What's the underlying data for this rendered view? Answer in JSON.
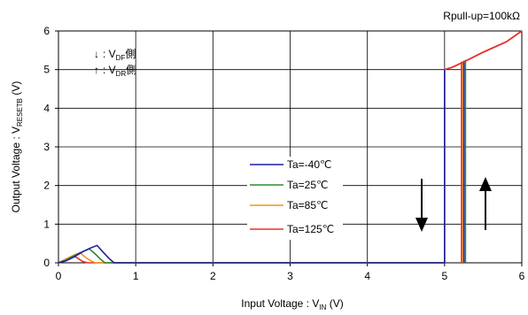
{
  "chart_data": {
    "type": "line",
    "xlabel_prefix": "Input Voltage : V",
    "xlabel_sub": "IN",
    "xlabel_suffix": " (V)",
    "ylabel_prefix": "Output Voltage : V",
    "ylabel_sub": "RESETB",
    "ylabel_suffix": " (V)",
    "xlim": [
      0,
      6
    ],
    "ylim": [
      0,
      6
    ],
    "x_ticks": [
      "0",
      "1",
      "2",
      "3",
      "4",
      "5",
      "6"
    ],
    "y_ticks": [
      "0",
      "1",
      "2",
      "3",
      "4",
      "5",
      "6"
    ],
    "grid": true,
    "condition_note": "Rpull-up=100kΩ",
    "direction_legend": [
      {
        "arrow": "↓",
        "text": ": V",
        "sub": "DF",
        "suffix": "側"
      },
      {
        "arrow": "↑",
        "text": ": V",
        "sub": "DR",
        "suffix": "側"
      }
    ],
    "legend_position": "center-right",
    "series": [
      {
        "name": "Ta=-40℃",
        "color": "#1f1fa0",
        "points": [
          [
            0,
            0
          ],
          [
            0.1,
            0.05
          ],
          [
            0.2,
            0.15
          ],
          [
            0.3,
            0.27
          ],
          [
            0.4,
            0.37
          ],
          [
            0.5,
            0.45
          ],
          [
            0.58,
            0.27
          ],
          [
            0.66,
            0.1
          ],
          [
            0.72,
            0
          ],
          [
            5.0,
            0
          ],
          [
            5.0,
            5.0
          ]
        ]
      },
      {
        "name": "Ta=25℃",
        "color": "#2e8b2e",
        "points": [
          [
            0,
            0
          ],
          [
            0.1,
            0.07
          ],
          [
            0.2,
            0.18
          ],
          [
            0.3,
            0.28
          ],
          [
            0.4,
            0.36
          ],
          [
            0.47,
            0.24
          ],
          [
            0.54,
            0.1
          ],
          [
            0.6,
            0
          ],
          [
            5.0,
            0
          ],
          [
            5.0,
            5.0
          ]
        ]
      },
      {
        "name": "Ta=85℃",
        "color": "#f0961e",
        "points": [
          [
            0,
            0
          ],
          [
            0.1,
            0.1
          ],
          [
            0.2,
            0.2
          ],
          [
            0.28,
            0.26
          ],
          [
            0.35,
            0.14
          ],
          [
            0.42,
            0.05
          ],
          [
            0.48,
            0
          ],
          [
            5.0,
            0
          ],
          [
            5.0,
            5.0
          ]
        ]
      },
      {
        "name": "Ta=125℃",
        "color": "#e8302a",
        "points": [
          [
            0,
            0
          ],
          [
            0.1,
            0.1
          ],
          [
            0.2,
            0.18
          ],
          [
            0.26,
            0.1
          ],
          [
            0.32,
            0.03
          ],
          [
            0.38,
            0
          ],
          [
            5.0,
            0
          ],
          [
            5.0,
            5.0
          ]
        ]
      }
    ],
    "release_series": [
      {
        "name": "Ta=-40℃",
        "color": "#1f1fa0",
        "points": [
          [
            5.25,
            0
          ],
          [
            5.25,
            5.23
          ]
        ]
      },
      {
        "name": "Ta=25℃",
        "color": "#2e8b2e",
        "points": [
          [
            5.27,
            0
          ],
          [
            5.27,
            5.25
          ]
        ]
      },
      {
        "name": "Ta=85℃",
        "color": "#f0961e",
        "points": [
          [
            5.23,
            0
          ],
          [
            5.23,
            5.21
          ]
        ]
      },
      {
        "name": "Ta=125℃",
        "color": "#e8302a",
        "points": [
          [
            5.22,
            0
          ],
          [
            5.22,
            5.2
          ]
        ]
      }
    ],
    "output_curve": {
      "color": "#e8302a",
      "points": [
        [
          5.0,
          5.0
        ],
        [
          5.1,
          5.06
        ],
        [
          5.25,
          5.2
        ],
        [
          5.5,
          5.45
        ],
        [
          5.8,
          5.72
        ],
        [
          6.0,
          6.0
        ]
      ]
    }
  }
}
